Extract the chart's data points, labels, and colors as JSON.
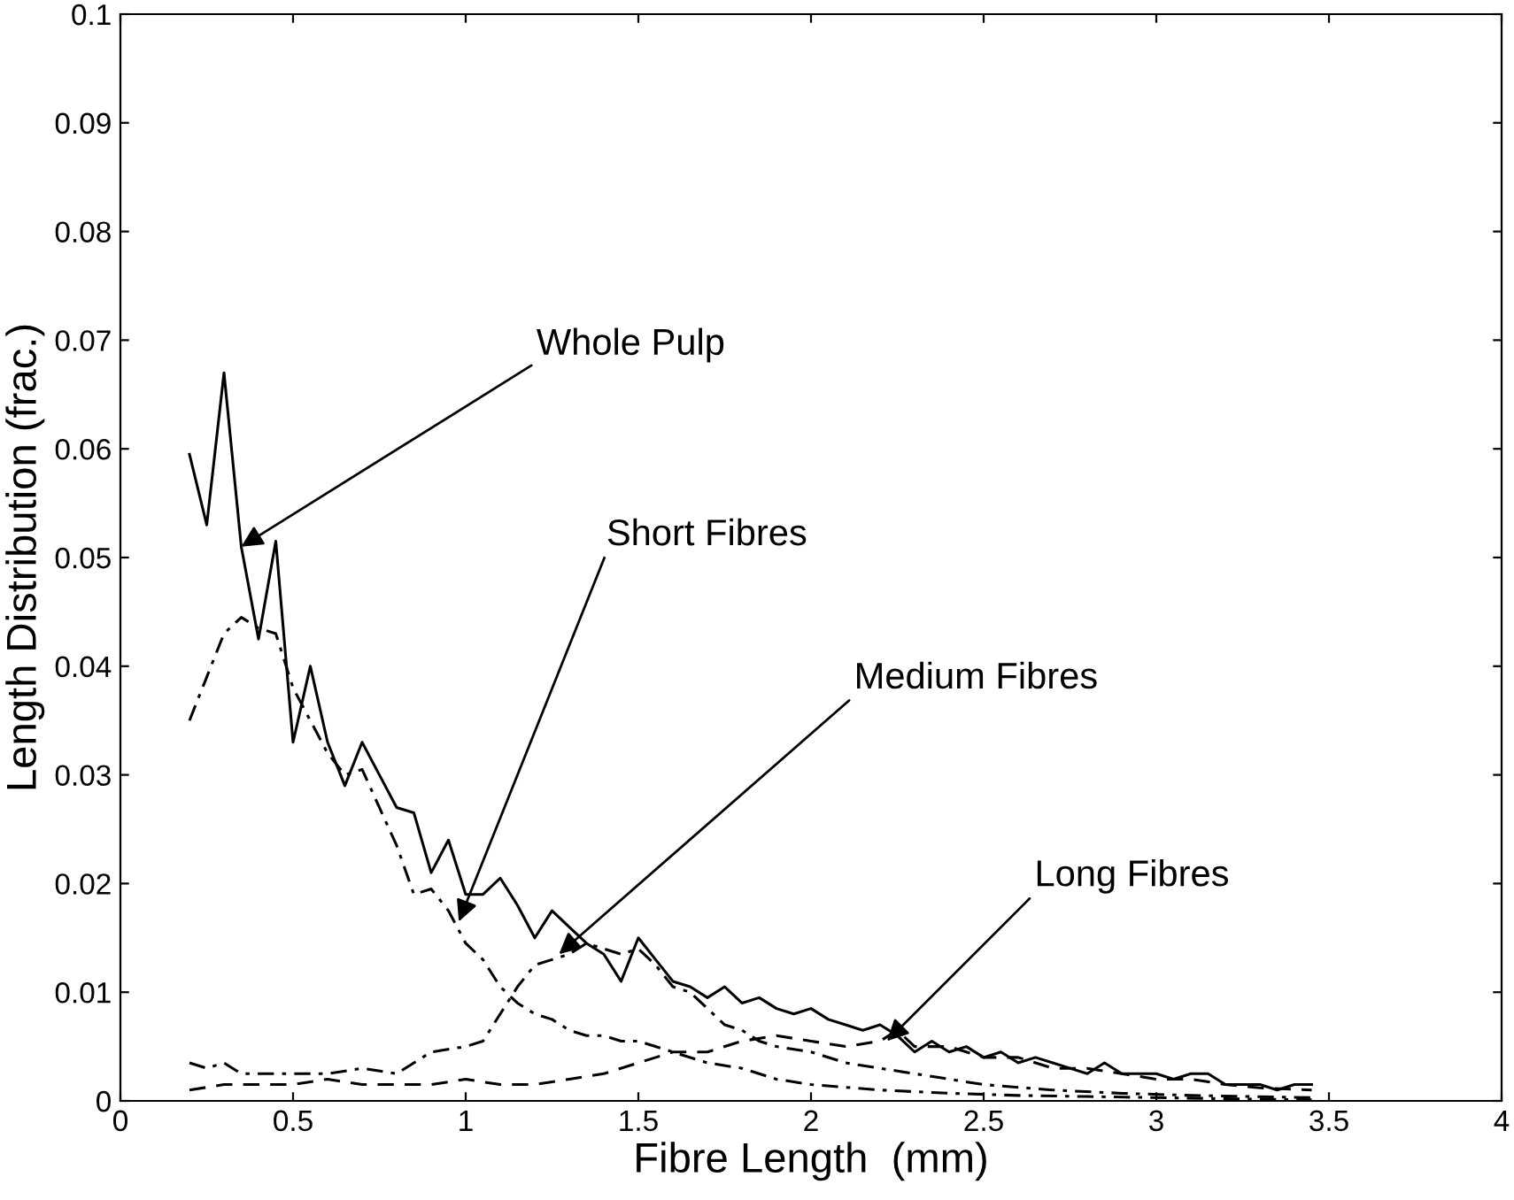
{
  "chart_data": {
    "type": "line",
    "xlabel": "Fibre Length  (mm)",
    "ylabel": "Length Distribution (frac.)",
    "xlim": [
      0,
      4
    ],
    "xticks": [
      0,
      0.5,
      1,
      1.5,
      2,
      2.5,
      3,
      3.5,
      4
    ],
    "ylim": [
      0,
      0.1
    ],
    "yticks": [
      0,
      0.01,
      0.02,
      0.03,
      0.04,
      0.05,
      0.06,
      0.07,
      0.08,
      0.09,
      0.1
    ],
    "grid": false,
    "legend": false,
    "marker": "none",
    "series": [
      {
        "color": "#000000",
        "line_style": "solid",
        "x": [
          0.2,
          0.25,
          0.3,
          0.35,
          0.4,
          0.45,
          0.5,
          0.55,
          0.6,
          0.65,
          0.7,
          0.75,
          0.8,
          0.85,
          0.9,
          0.95,
          1.0,
          1.05,
          1.1,
          1.15,
          1.2,
          1.25,
          1.3,
          1.35,
          1.4,
          1.45,
          1.5,
          1.55,
          1.6,
          1.65,
          1.7,
          1.75,
          1.8,
          1.85,
          1.9,
          1.95,
          2.0,
          2.05,
          2.1,
          2.15,
          2.2,
          2.25,
          2.3,
          2.35,
          2.4,
          2.45,
          2.5,
          2.55,
          2.6,
          2.65,
          2.7,
          2.75,
          2.8,
          2.85,
          2.9,
          2.95,
          3.0,
          3.05,
          3.1,
          3.15,
          3.2,
          3.25,
          3.3,
          3.35,
          3.4,
          3.45
        ],
        "values": [
          0.0595,
          0.053,
          0.067,
          0.051,
          0.0425,
          0.0515,
          0.033,
          0.04,
          0.033,
          0.029,
          0.033,
          0.03,
          0.027,
          0.0265,
          0.021,
          0.024,
          0.019,
          0.019,
          0.0205,
          0.018,
          0.015,
          0.0175,
          0.016,
          0.0145,
          0.0135,
          0.011,
          0.015,
          0.013,
          0.011,
          0.0105,
          0.0095,
          0.0105,
          0.009,
          0.0095,
          0.0085,
          0.008,
          0.0085,
          0.0075,
          0.007,
          0.0065,
          0.007,
          0.006,
          0.0045,
          0.0055,
          0.0045,
          0.005,
          0.004,
          0.0045,
          0.0035,
          0.004,
          0.0035,
          0.003,
          0.0025,
          0.0035,
          0.0025,
          0.0025,
          0.0025,
          0.002,
          0.0025,
          0.0025,
          0.0015,
          0.0015,
          0.0015,
          0.001,
          0.0015,
          0.0015
        ]
      },
      {
        "color": "#000000",
        "line_style": "dashdot",
        "x": [
          0.2,
          0.25,
          0.3,
          0.35,
          0.4,
          0.45,
          0.5,
          0.55,
          0.6,
          0.65,
          0.7,
          0.75,
          0.8,
          0.85,
          0.9,
          0.95,
          1.0,
          1.05,
          1.1,
          1.15,
          1.2,
          1.25,
          1.3,
          1.35,
          1.4,
          1.45,
          1.5,
          1.6,
          1.7,
          1.8,
          1.9,
          2.0,
          2.2,
          2.4,
          2.6,
          2.8,
          3.0,
          3.2,
          3.45
        ],
        "values": [
          0.035,
          0.039,
          0.043,
          0.0445,
          0.0435,
          0.043,
          0.038,
          0.035,
          0.032,
          0.03,
          0.0305,
          0.027,
          0.0235,
          0.019,
          0.0195,
          0.0175,
          0.0145,
          0.013,
          0.0105,
          0.009,
          0.008,
          0.0075,
          0.0065,
          0.006,
          0.006,
          0.0055,
          0.0055,
          0.0045,
          0.0035,
          0.003,
          0.002,
          0.0015,
          0.001,
          0.0007,
          0.0005,
          0.0004,
          0.0003,
          0.0002,
          0.0001
        ]
      },
      {
        "color": "#000000",
        "line_style": "dashdot",
        "x": [
          0.2,
          0.25,
          0.3,
          0.35,
          0.4,
          0.5,
          0.6,
          0.7,
          0.8,
          0.9,
          1.0,
          1.05,
          1.1,
          1.15,
          1.2,
          1.25,
          1.3,
          1.35,
          1.4,
          1.45,
          1.5,
          1.55,
          1.6,
          1.65,
          1.7,
          1.75,
          1.8,
          1.85,
          1.9,
          2.0,
          2.1,
          2.2,
          2.3,
          2.4,
          2.5,
          2.7,
          2.9,
          3.1,
          3.45
        ],
        "values": [
          0.0035,
          0.003,
          0.0035,
          0.0025,
          0.0025,
          0.0025,
          0.0025,
          0.003,
          0.0025,
          0.0045,
          0.005,
          0.0055,
          0.008,
          0.0105,
          0.0125,
          0.013,
          0.0135,
          0.0145,
          0.014,
          0.0135,
          0.014,
          0.0125,
          0.0105,
          0.01,
          0.0085,
          0.007,
          0.0065,
          0.0055,
          0.005,
          0.0045,
          0.0035,
          0.003,
          0.0025,
          0.002,
          0.0015,
          0.001,
          0.0007,
          0.0005,
          0.0003
        ]
      },
      {
        "color": "#000000",
        "line_style": "dashed",
        "x": [
          0.2,
          0.3,
          0.4,
          0.5,
          0.6,
          0.7,
          0.8,
          0.9,
          1.0,
          1.1,
          1.2,
          1.3,
          1.4,
          1.5,
          1.6,
          1.7,
          1.8,
          1.9,
          2.0,
          2.1,
          2.2,
          2.25,
          2.3,
          2.4,
          2.5,
          2.6,
          2.7,
          2.8,
          2.9,
          3.0,
          3.1,
          3.2,
          3.3,
          3.45
        ],
        "values": [
          0.001,
          0.0015,
          0.0015,
          0.0015,
          0.002,
          0.0015,
          0.0015,
          0.0015,
          0.002,
          0.0015,
          0.0015,
          0.002,
          0.0025,
          0.0035,
          0.0045,
          0.0045,
          0.0055,
          0.006,
          0.0055,
          0.005,
          0.0055,
          0.0065,
          0.005,
          0.005,
          0.004,
          0.004,
          0.003,
          0.003,
          0.0025,
          0.002,
          0.002,
          0.0015,
          0.0012,
          0.001
        ]
      }
    ],
    "annotations": [
      {
        "text": "Whole Pulp",
        "x": 0.35,
        "y": 0.051
      },
      {
        "text": "Short Fibres",
        "x": 0.98,
        "y": 0.0165
      },
      {
        "text": "Medium Fibres",
        "x": 1.27,
        "y": 0.0135
      },
      {
        "text": "Long Fibres",
        "x": 2.22,
        "y": 0.0055
      }
    ]
  }
}
